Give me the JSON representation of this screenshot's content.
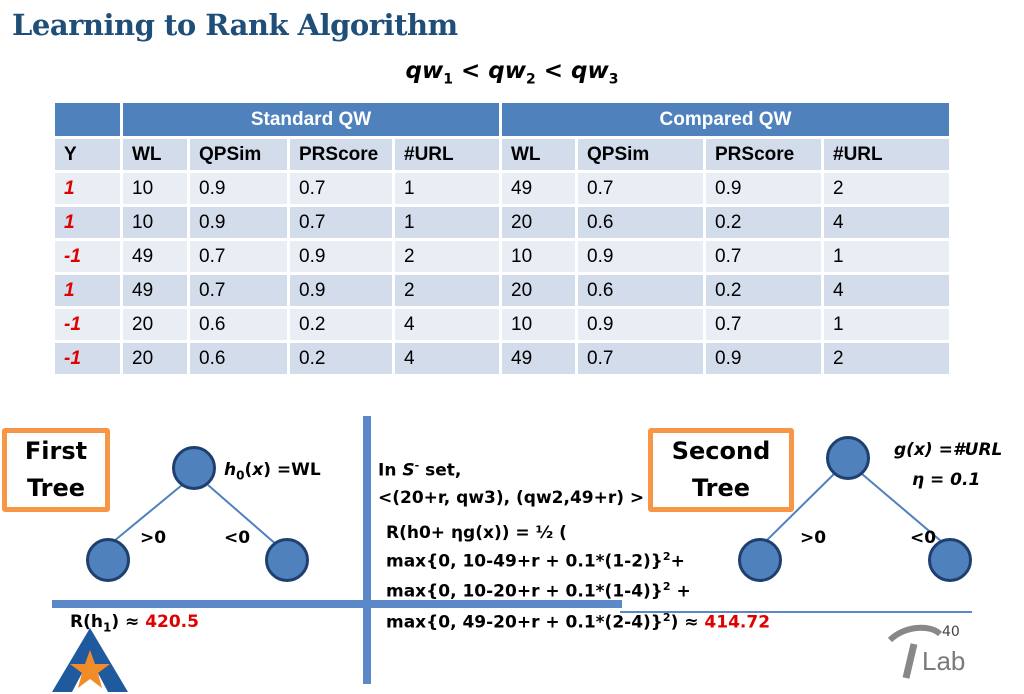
{
  "title": "Learning to Rank Algorithm",
  "formula": {
    "p1": "qw",
    "s1": "1",
    "p2": " < qw",
    "s2": "2",
    "p3": " < qw",
    "s3": "3"
  },
  "table": {
    "group_standard": "Standard QW",
    "group_compared": "Compared QW",
    "columns": [
      "Y",
      "WL",
      "QPSim",
      "PRScore",
      "#URL",
      "WL",
      "QPSim",
      "PRScore",
      "#URL"
    ],
    "rows": [
      [
        "1",
        "10",
        "0.9",
        "0.7",
        "1",
        "49",
        "0.7",
        "0.9",
        "2"
      ],
      [
        "1",
        "10",
        "0.9",
        "0.7",
        "1",
        "20",
        "0.6",
        "0.2",
        "4"
      ],
      [
        "-1",
        "49",
        "0.7",
        "0.9",
        "2",
        "10",
        "0.9",
        "0.7",
        "1"
      ],
      [
        "1",
        "49",
        "0.7",
        "0.9",
        "2",
        "20",
        "0.6",
        "0.2",
        "4"
      ],
      [
        "-1",
        "20",
        "0.6",
        "0.2",
        "4",
        "10",
        "0.9",
        "0.7",
        "1"
      ],
      [
        "-1",
        "20",
        "0.6",
        "0.2",
        "4",
        "49",
        "0.7",
        "0.9",
        "2"
      ]
    ]
  },
  "first_tree": {
    "label_line1": "First",
    "label_line2": "Tree",
    "func_h": "h",
    "func_sub": "0",
    "func_x": "x",
    "func_rest": ") =WL",
    "left_branch": ">0",
    "right_branch": "<0",
    "r_prefix": "R(h",
    "r_sub": "1",
    "r_suffix": ")  ≈ ",
    "r_value": "420.5"
  },
  "middle": {
    "set_line_a": "In ",
    "set_S": "S",
    "set_sup": "-",
    "set_line_b": " set,",
    "pair_line": "<(20+r, qw3), (qw2,49+r) >",
    "r_line": "R(h0+ ηg(x)) = ½ (",
    "max1": "max{0, 10-49+r + 0.1*(1-2)}",
    "max2": "max{0, 10-20+r + 0.1*(1-4)}",
    "max3": "max{0, 49-20+r + 0.1*(2-4)}",
    "exp": "2",
    "plus": "+",
    "plus2": " +",
    "approx": ") ≈ ",
    "r_value": "414.72"
  },
  "second_tree": {
    "label_line1": "Second",
    "label_line2": "Tree",
    "g_def": "g(x) =#URL",
    "eta_def": "η = 0.1",
    "left_branch": ">0",
    "right_branch": "<0"
  },
  "page_number": "40",
  "logo_text": "Lab",
  "colors": {
    "title": "#1f4e79",
    "header": "#4f81bd",
    "row_light": "#e9edf4",
    "row_dark": "#d3dceb",
    "highlight": "#e00000",
    "box_border": "#f79646"
  }
}
